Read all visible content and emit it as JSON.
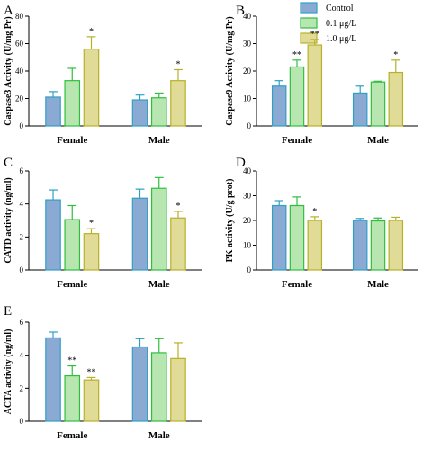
{
  "legend": {
    "entries": [
      {
        "label": "Control",
        "color": "#8aaad4",
        "edge": "#2f9fc4"
      },
      {
        "label": "0.1 μg/L",
        "color": "#b8e6b0",
        "edge": "#2fbf3f"
      },
      {
        "label": "1.0 μg/L",
        "color": "#e0dc98",
        "edge": "#b8b028"
      }
    ]
  },
  "chart_data": [
    {
      "panel": "A",
      "type": "bar",
      "ylabel": "Caspase3 Activity (U/mg Pr)",
      "categories": [
        "Female",
        "Male"
      ],
      "ylim": [
        0,
        80
      ],
      "yticks": [
        0,
        20,
        40,
        60,
        80
      ],
      "series": [
        {
          "name": "Control",
          "values": [
            21,
            19
          ],
          "errors": [
            4,
            3.5
          ],
          "sig": [
            "",
            ""
          ]
        },
        {
          "name": "0.1 μg/L",
          "values": [
            33,
            20.5
          ],
          "errors": [
            9,
            3.5
          ],
          "sig": [
            "",
            ""
          ]
        },
        {
          "name": "1.0 μg/L",
          "values": [
            56,
            33
          ],
          "errors": [
            9,
            8
          ],
          "sig": [
            "*",
            "*"
          ]
        }
      ]
    },
    {
      "panel": "B",
      "type": "bar",
      "ylabel": "Caspase9 Activity (U/mg Pr)",
      "categories": [
        "Female",
        "Male"
      ],
      "ylim": [
        0,
        40
      ],
      "yticks": [
        0,
        10,
        20,
        30,
        40
      ],
      "series": [
        {
          "name": "Control",
          "values": [
            14.5,
            12
          ],
          "errors": [
            2,
            2.5
          ],
          "sig": [
            "",
            ""
          ]
        },
        {
          "name": "0.1 μg/L",
          "values": [
            21.5,
            16
          ],
          "errors": [
            2.5,
            0.3
          ],
          "sig": [
            "**",
            ""
          ]
        },
        {
          "name": "1.0 μg/L",
          "values": [
            29.5,
            19.5
          ],
          "errors": [
            2,
            4.5
          ],
          "sig": [
            "**",
            "*"
          ]
        }
      ]
    },
    {
      "panel": "C",
      "type": "bar",
      "ylabel": "CATD activity (ng/ml)",
      "categories": [
        "Female",
        "Male"
      ],
      "ylim": [
        0,
        6
      ],
      "yticks": [
        0,
        2,
        4,
        6
      ],
      "series": [
        {
          "name": "Control",
          "values": [
            4.25,
            4.35
          ],
          "errors": [
            0.6,
            0.55
          ],
          "sig": [
            "",
            ""
          ]
        },
        {
          "name": "0.1 μg/L",
          "values": [
            3.05,
            4.95
          ],
          "errors": [
            0.85,
            0.65
          ],
          "sig": [
            "",
            ""
          ]
        },
        {
          "name": "1.0 μg/L",
          "values": [
            2.2,
            3.15
          ],
          "errors": [
            0.3,
            0.4
          ],
          "sig": [
            "*",
            "*"
          ]
        }
      ]
    },
    {
      "panel": "D",
      "type": "bar",
      "ylabel": "PK activity (U/g prot)",
      "categories": [
        "Female",
        "Male"
      ],
      "ylim": [
        0,
        40
      ],
      "yticks": [
        0,
        10,
        20,
        30,
        40
      ],
      "series": [
        {
          "name": "Control",
          "values": [
            26,
            20
          ],
          "errors": [
            2,
            0.8
          ],
          "sig": [
            "",
            ""
          ]
        },
        {
          "name": "0.1 μg/L",
          "values": [
            26,
            19.8
          ],
          "errors": [
            3.5,
            1.2
          ],
          "sig": [
            "",
            ""
          ]
        },
        {
          "name": "1.0 μg/L",
          "values": [
            20,
            20
          ],
          "errors": [
            1.5,
            1.3
          ],
          "sig": [
            "*",
            ""
          ]
        }
      ]
    },
    {
      "panel": "E",
      "type": "bar",
      "ylabel": "ACTA activity (ng/ml)",
      "categories": [
        "Female",
        "Male"
      ],
      "ylim": [
        0,
        6
      ],
      "yticks": [
        0,
        2,
        4,
        6
      ],
      "series": [
        {
          "name": "Control",
          "values": [
            5.05,
            4.5
          ],
          "errors": [
            0.35,
            0.5
          ],
          "sig": [
            "",
            ""
          ]
        },
        {
          "name": "0.1 μg/L",
          "values": [
            2.75,
            4.15
          ],
          "errors": [
            0.6,
            0.85
          ],
          "sig": [
            "**",
            ""
          ]
        },
        {
          "name": "1.0 μg/L",
          "values": [
            2.5,
            3.8
          ],
          "errors": [
            0.15,
            0.95
          ],
          "sig": [
            "**",
            ""
          ]
        }
      ]
    }
  ]
}
